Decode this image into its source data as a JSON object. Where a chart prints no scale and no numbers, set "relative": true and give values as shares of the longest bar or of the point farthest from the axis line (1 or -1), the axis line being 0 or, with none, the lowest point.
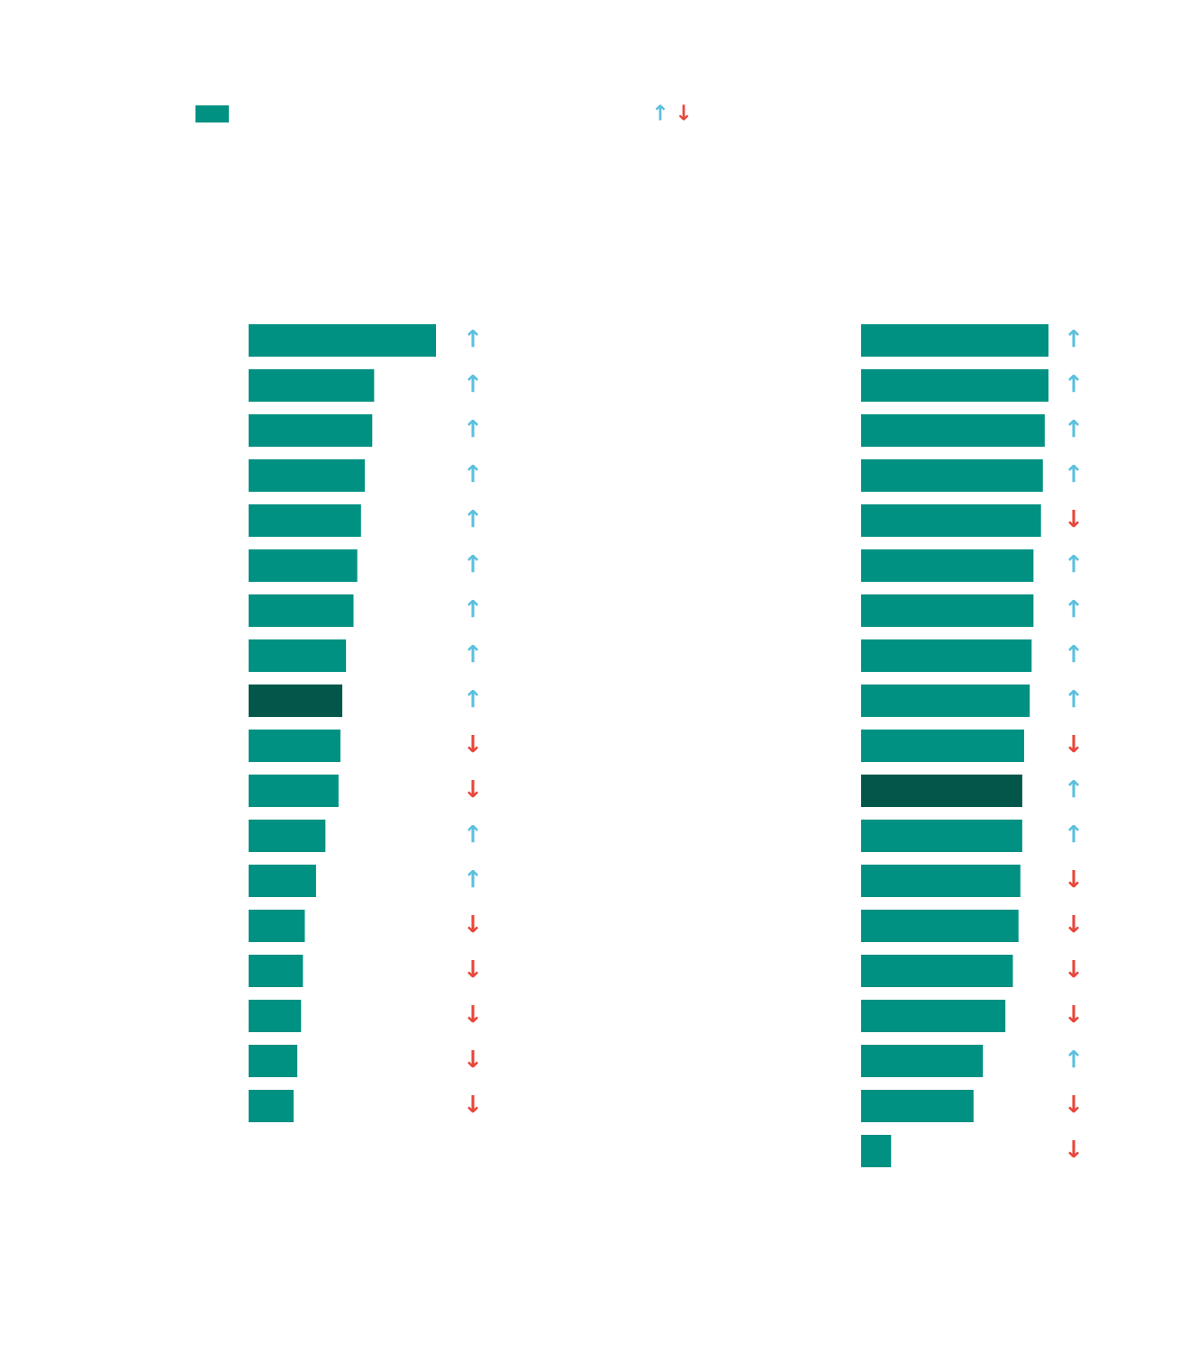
{
  "chart_data": [
    {
      "type": "bar",
      "orientation": "horizontal",
      "relative": true,
      "annotations": [
        "↑",
        "↓",
        "↑",
        "↑",
        "↑",
        "↑",
        "↑",
        "↑",
        "↑",
        "↑",
        "↑",
        "↓",
        "↓",
        "↑",
        "↑",
        "↓",
        "↓",
        "↓",
        "↓",
        "↓"
      ],
      "categories": [
        null,
        null,
        null,
        null,
        null,
        null,
        null,
        null,
        null,
        null,
        null,
        null,
        null,
        null,
        null,
        null,
        null,
        null
      ],
      "series": [
        {
          "color": "#009182",
          "colors": [
            "#009182",
            "#009182",
            "#009182",
            "#009182",
            "#009182",
            "#009182",
            "#009182",
            "#009182",
            "#02574a",
            "#009182",
            "#009182",
            "#009182",
            "#009182",
            "#009182",
            "#009182",
            "#009182",
            "#009182",
            "#009182"
          ],
          "values": [
            1,
            0.67,
            0.66,
            0.62,
            0.6,
            0.58,
            0.56,
            0.52,
            0.5,
            0.49,
            0.48,
            0.41,
            0.36,
            0.3,
            0.29,
            0.28,
            0.26,
            0.24
          ]
        }
      ]
    },
    {
      "type": "bar",
      "orientation": "horizontal",
      "relative": true,
      "annotations": [
        "↑",
        "↑",
        "↑",
        "↑",
        "↓",
        "↑",
        "↑",
        "↑",
        "↑",
        "↓",
        "↑",
        "↑",
        "↓",
        "↓",
        "↓",
        "↓",
        "↑",
        "↓",
        "↓"
      ],
      "categories": [
        null,
        null,
        null,
        null,
        null,
        null,
        null,
        null,
        null,
        null,
        null,
        null,
        null,
        null,
        null,
        null,
        null,
        null,
        null
      ],
      "series": [
        {
          "colors": [
            "#009182",
            "#009182",
            "#009182",
            "#009182",
            "#009182",
            "#009182",
            "#009182",
            "#009182",
            "#009182",
            "#009182",
            "#02574a",
            "#009182",
            "#009182",
            "#009182",
            "#009182",
            "#009182",
            "#009182",
            "#009182",
            "#009182"
          ],
          "values": [
            1,
            1,
            0.98,
            0.97,
            0.96,
            0.92,
            0.92,
            0.91,
            0.9,
            0.87,
            0.86,
            0.86,
            0.85,
            0.84,
            0.81,
            0.77,
            0.65,
            0.6,
            0.16
          ]
        }
      ]
    }
  ]
}
